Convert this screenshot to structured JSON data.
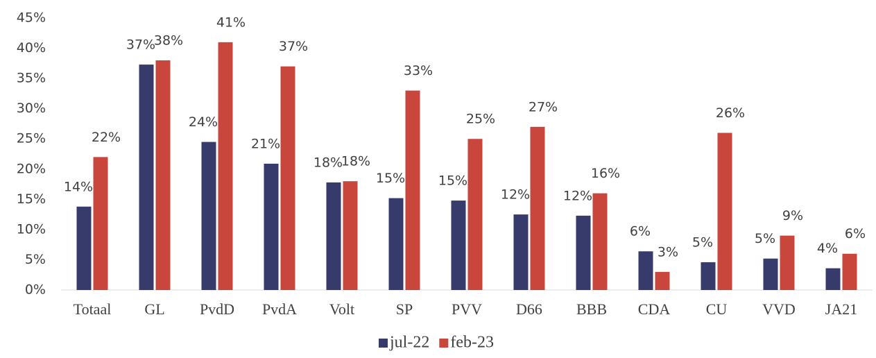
{
  "chart_data": {
    "type": "bar",
    "categories": [
      "Totaal",
      "GL",
      "PvdD",
      "PvdA",
      "Volt",
      "SP",
      "PVV",
      "D66",
      "BBB",
      "CDA",
      "CU",
      "VVD",
      "JA21"
    ],
    "series": [
      {
        "name": "jul-22",
        "color": "#363b6b",
        "values": [
          13.8,
          37.3,
          24.5,
          20.9,
          17.8,
          15.2,
          14.8,
          12.5,
          12.3,
          6.4,
          4.6,
          5.2,
          3.6
        ],
        "value_labels": [
          "14%",
          "37%",
          "24%",
          "21%",
          "18%",
          "15%",
          "15%",
          "12%",
          "12%",
          "6%",
          "5%",
          "5%",
          "4%"
        ]
      },
      {
        "name": "feb-23",
        "color": "#c9463d",
        "values": [
          22,
          38,
          41,
          37,
          18,
          33,
          25,
          27,
          16,
          3,
          26,
          9,
          6
        ],
        "value_labels": [
          "22%",
          "38%",
          "41%",
          "37%",
          "18%",
          "33%",
          "25%",
          "27%",
          "16%",
          "3%",
          "26%",
          "9%",
          "6%"
        ]
      }
    ],
    "ylim": [
      0,
      45
    ],
    "yticks": [
      {
        "value": 0,
        "label": "0%"
      },
      {
        "value": 5,
        "label": "5%"
      },
      {
        "value": 10,
        "label": "10%"
      },
      {
        "value": 15,
        "label": "15%"
      },
      {
        "value": 20,
        "label": "20%"
      },
      {
        "value": 25,
        "label": "25%"
      },
      {
        "value": 30,
        "label": "30%"
      },
      {
        "value": 35,
        "label": "35%"
      },
      {
        "value": 40,
        "label": "40%"
      },
      {
        "value": 45,
        "label": "45%"
      }
    ],
    "grid": false,
    "legend": "bottom"
  }
}
